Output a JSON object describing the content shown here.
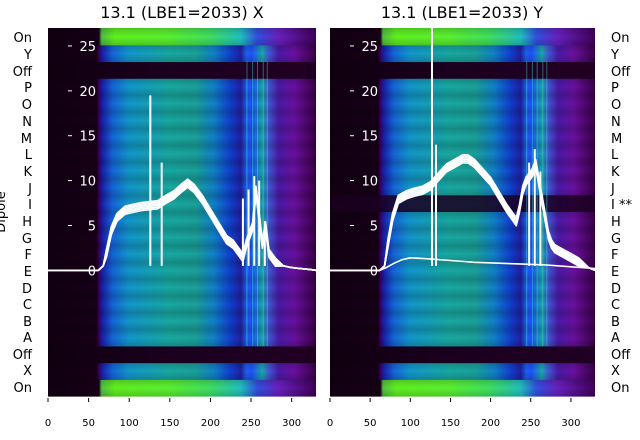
{
  "chart_data": [
    {
      "type": "heatmap",
      "title": "13.1 (LBE1=2033) X",
      "xlim": [
        0,
        330
      ],
      "xticks": [
        0,
        50,
        100,
        150,
        200,
        250,
        300
      ],
      "ylim": [
        -14,
        27
      ],
      "yticks": [
        0,
        5,
        10,
        15,
        20,
        25
      ],
      "ylabel": "Dipole",
      "row_labels": [
        "On",
        "X",
        "Off",
        "A",
        "B",
        "C",
        "D",
        "E",
        "F",
        "G",
        "H",
        "I",
        "J",
        "K",
        "L",
        "M",
        "N",
        "O",
        "P",
        "Off",
        "Y",
        "On"
      ],
      "label_side": "left",
      "traces_bundle": {
        "count": 6,
        "x": [
          0,
          62,
          68,
          72,
          78,
          85,
          95,
          105,
          115,
          125,
          135,
          145,
          155,
          165,
          172,
          180,
          190,
          200,
          210,
          220,
          228,
          232,
          236,
          240,
          244,
          248,
          252,
          256,
          260,
          264,
          268,
          272,
          276,
          280,
          290,
          300,
          310,
          322,
          330
        ],
        "y": [
          0,
          0,
          0.5,
          2,
          4.5,
          6,
          6.8,
          7,
          7.2,
          7.3,
          7.4,
          8,
          8.5,
          9.3,
          9.8,
          9.2,
          8,
          6.5,
          5,
          3.5,
          3,
          2.5,
          2,
          1.5,
          3,
          4,
          5,
          9,
          6,
          3,
          5,
          2,
          1.5,
          1,
          0.5,
          0.3,
          0.2,
          0.1,
          0
        ]
      },
      "spikes": [
        {
          "x": 126,
          "y": 19.5
        },
        {
          "x": 140,
          "y": 12
        },
        {
          "x": 240,
          "y": 8
        },
        {
          "x": 247,
          "y": 9
        },
        {
          "x": 254,
          "y": 10.5
        },
        {
          "x": 260,
          "y": 10
        },
        {
          "x": 267,
          "y": 5.5
        }
      ]
    },
    {
      "type": "heatmap",
      "title": "13.1 (LBE1=2033) Y",
      "xlim": [
        0,
        330
      ],
      "xticks": [
        0,
        50,
        100,
        150,
        200,
        250,
        300
      ],
      "ylim": [
        -14,
        27
      ],
      "yticks": [
        0,
        5,
        10,
        15,
        20,
        25
      ],
      "row_labels": [
        "On",
        "X",
        "Off",
        "A",
        "B",
        "C",
        "D",
        "E",
        "F",
        "G",
        "H",
        "I **",
        "J",
        "K",
        "L",
        "M",
        "N",
        "O",
        "P",
        "Off",
        "Y",
        "On"
      ],
      "label_side": "right",
      "traces_bundle": {
        "count": 6,
        "x": [
          0,
          62,
          68,
          72,
          78,
          85,
          95,
          105,
          115,
          125,
          135,
          145,
          155,
          165,
          172,
          180,
          190,
          200,
          210,
          220,
          228,
          232,
          236,
          240,
          244,
          248,
          252,
          256,
          260,
          264,
          268,
          272,
          276,
          280,
          290,
          300,
          310,
          322,
          330
        ],
        "y": [
          0,
          0,
          0.5,
          3,
          6,
          8,
          8.5,
          8.8,
          9,
          9.5,
          10.5,
          11.5,
          12,
          12.5,
          12.5,
          12,
          11,
          10,
          8.5,
          7,
          6,
          5.5,
          7,
          9,
          10,
          10.5,
          11,
          12,
          10,
          8,
          6,
          4,
          3,
          2.5,
          2,
          1.5,
          1,
          0.3,
          0
        ]
      },
      "low_trace": {
        "x": [
          0,
          62,
          70,
          80,
          90,
          100,
          120,
          150,
          180,
          210,
          240,
          270,
          300,
          330
        ],
        "y": [
          0,
          0,
          0.3,
          0.8,
          1.2,
          1.4,
          1.3,
          1.1,
          0.9,
          0.8,
          0.7,
          0.6,
          0.4,
          0.2
        ]
      },
      "spikes": [
        {
          "x": 127,
          "y": 27
        },
        {
          "x": 132,
          "y": 14
        },
        {
          "x": 248,
          "y": 12
        },
        {
          "x": 255,
          "y": 13.5
        },
        {
          "x": 262,
          "y": 11
        }
      ]
    }
  ]
}
